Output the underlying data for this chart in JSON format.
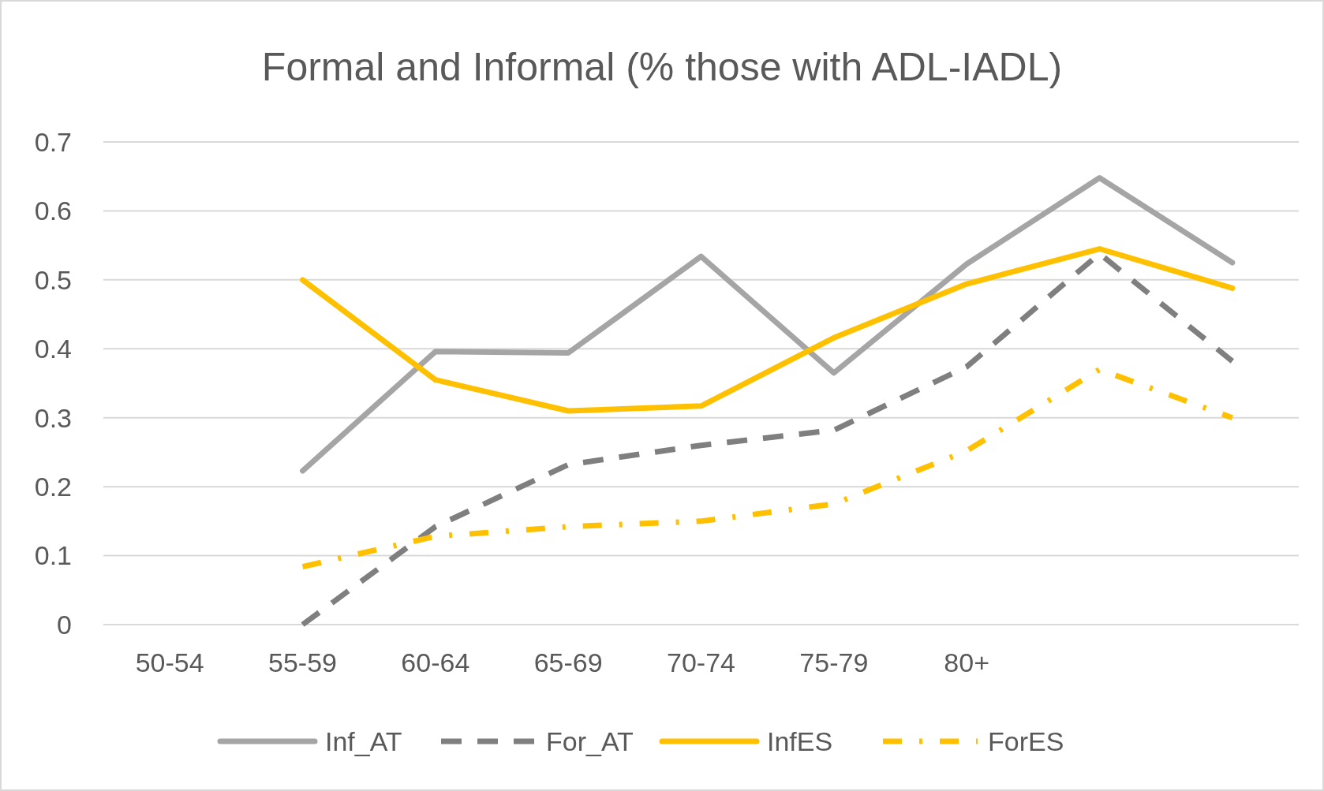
{
  "chart_data": {
    "type": "line",
    "title": "Formal and Informal (% those with ADL-IADL)",
    "categories": [
      "50-54",
      "55-59",
      "60-64",
      "65-69",
      "70-74",
      "75-79",
      "80+",
      null,
      null
    ],
    "series": [
      {
        "name": "Inf_AT",
        "color": "#a5a5a5",
        "line_style": "solid",
        "values": [
          null,
          0.223,
          0.396,
          0.394,
          0.534,
          0.365,
          0.523,
          0.648,
          0.525
        ]
      },
      {
        "name": "For_AT",
        "color": "#7f7f7f",
        "line_style": "dashed",
        "values": [
          null,
          0,
          0.142,
          0.232,
          0.26,
          0.282,
          0.374,
          0.538,
          0.382
        ]
      },
      {
        "name": "InfES",
        "color": "#ffc000",
        "line_style": "solid",
        "values": [
          null,
          0.5,
          0.355,
          0.31,
          0.317,
          0.416,
          0.494,
          0.545,
          0.488
        ]
      },
      {
        "name": "ForES",
        "color": "#ffc000",
        "line_style": "dotted",
        "values": [
          null,
          0.084,
          0.128,
          0.142,
          0.15,
          0.175,
          0.252,
          0.37,
          0.3
        ]
      }
    ],
    "ylim": [
      0,
      0.7
    ],
    "yticks": [
      0,
      0.1,
      0.2,
      0.3,
      0.4,
      0.5,
      0.6,
      0.7
    ],
    "grid": "y",
    "legend": "bottom",
    "marker": "none"
  }
}
